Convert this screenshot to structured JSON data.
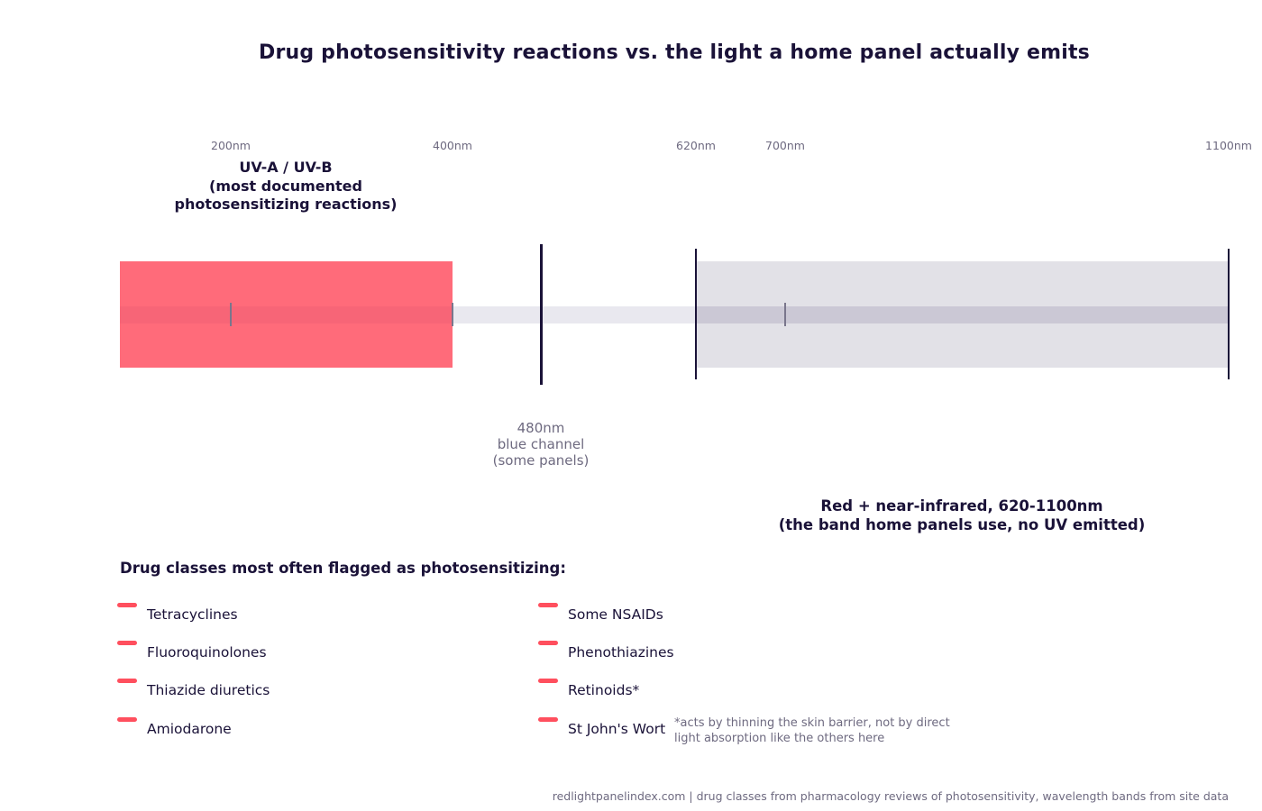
{
  "title": "Drug photosensitivity reactions vs. the light a home panel actually emits",
  "wavelength_axis": {
    "ticks": [
      "200nm",
      "400nm",
      "620nm",
      "700nm",
      "1100nm"
    ]
  },
  "bands": {
    "uv": {
      "label_lines": [
        "UV-A / UV-B",
        "(most documented",
        "photosensitizing reactions)"
      ],
      "color": "#ff6b7a"
    },
    "blue": {
      "label_lines": [
        "480nm",
        "blue channel",
        "(some panels)"
      ]
    },
    "red_nir": {
      "label_lines": [
        "Red + near-infrared, 620-1100nm",
        "(the band home panels use, no UV emitted)"
      ],
      "color": "#e2e1e7"
    }
  },
  "drugs": {
    "heading": "Drug classes most often flagged as photosensitizing:",
    "left_column": [
      "Tetracyclines",
      "Fluoroquinolones",
      "Thiazide diuretics",
      "Amiodarone"
    ],
    "right_column": [
      "Some NSAIDs",
      "Phenothiazines",
      "Retinoids*",
      "St John's Wort"
    ],
    "footnote_lines": [
      "*acts by thinning the skin barrier, not by direct",
      "light absorption like the others here"
    ],
    "dash_color": "#ff4f5e"
  },
  "source": "redlightpanelindex.com | drug classes from pharmacology reviews of photosensitivity, wavelength bands from site data"
}
